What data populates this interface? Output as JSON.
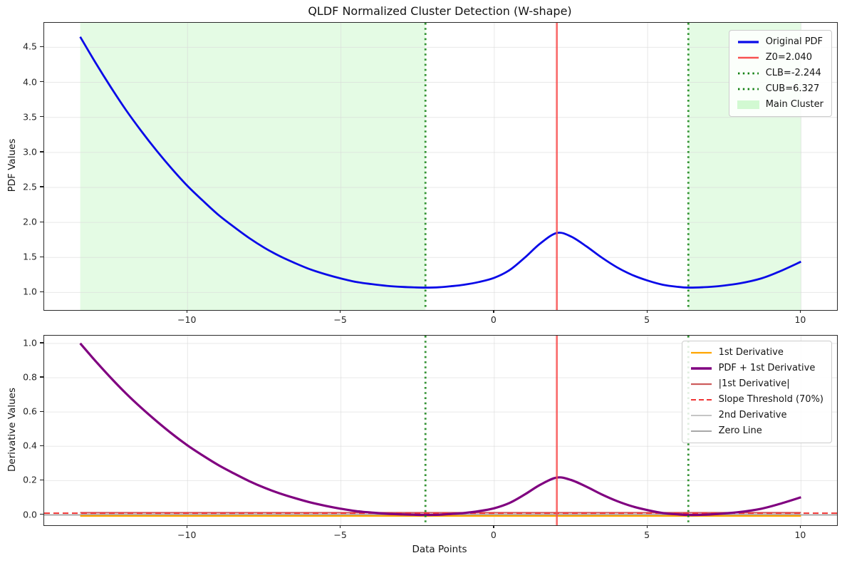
{
  "figure": {
    "title": "QLDF Normalized Cluster Detection (W-shape)"
  },
  "chart_data": [
    {
      "id": "ax1",
      "type": "line",
      "title": "QLDF Normalized Cluster Detection (W-shape)",
      "ylabel": "PDF Values",
      "xlabel": "",
      "xlim": [
        -14.675,
        11.175
      ],
      "ylim": [
        0.75,
        4.85
      ],
      "xticks": [
        -10,
        -5,
        0,
        5,
        10
      ],
      "yticks": [
        1.0,
        1.5,
        2.0,
        2.5,
        3.0,
        3.5,
        4.0,
        4.5
      ],
      "xtick_decimals": 0,
      "ytick_decimals": 1,
      "grid": true,
      "legend_position": "upper right",
      "spans": [
        {
          "name": "Main Cluster",
          "from": -13.5,
          "to": -2.244,
          "color": "#90ee90",
          "opacity": 0.24
        },
        {
          "name": "Main Cluster",
          "from": 6.327,
          "to": 10.0,
          "color": "#90ee90",
          "opacity": 0.24
        }
      ],
      "vlines": [
        {
          "name": "Z0",
          "x": 2.04,
          "color": "#f85050",
          "width": 2.6,
          "dash": null
        },
        {
          "name": "CLB",
          "x": -2.244,
          "color": "#128012",
          "width": 2.8,
          "dash": "2.6 4.6"
        },
        {
          "name": "CUB",
          "x": 6.327,
          "color": "#128012",
          "width": 2.8,
          "dash": "2.6 4.6"
        }
      ],
      "series": [
        {
          "name": "Original PDF",
          "color": "#0a0ae8",
          "width": 2.8,
          "x": [
            -13.5,
            -13,
            -12.5,
            -12,
            -11.5,
            -11,
            -10.5,
            -10,
            -9.5,
            -9,
            -8.5,
            -8,
            -7.5,
            -7,
            -6.5,
            -6,
            -5.5,
            -5,
            -4.5,
            -4,
            -3.5,
            -3,
            -2.6,
            -2.244,
            -1.8,
            -1.4,
            -1,
            -0.5,
            0,
            0.5,
            1,
            1.5,
            2.04,
            2.5,
            3,
            3.5,
            4,
            4.5,
            5,
            5.5,
            6,
            6.327,
            6.8,
            7.3,
            8,
            8.7,
            9.3,
            10
          ],
          "y": [
            4.65,
            4.28,
            3.93,
            3.6,
            3.3,
            3.02,
            2.76,
            2.52,
            2.31,
            2.11,
            1.94,
            1.78,
            1.64,
            1.52,
            1.42,
            1.33,
            1.26,
            1.2,
            1.15,
            1.12,
            1.095,
            1.08,
            1.073,
            1.07,
            1.075,
            1.09,
            1.11,
            1.15,
            1.21,
            1.32,
            1.5,
            1.7,
            1.85,
            1.8,
            1.66,
            1.5,
            1.36,
            1.25,
            1.17,
            1.11,
            1.08,
            1.07,
            1.075,
            1.09,
            1.13,
            1.2,
            1.3,
            1.44
          ]
        }
      ],
      "legend": [
        {
          "label": "Original PDF",
          "swatch": "line",
          "color": "#0a0ae8",
          "width": 3.2,
          "dash": null
        },
        {
          "label": "Z0=2.040",
          "swatch": "line",
          "color": "#f85050",
          "width": 2.6,
          "dash": null
        },
        {
          "label": "CLB=-2.244",
          "swatch": "line",
          "color": "#128012",
          "width": 2.8,
          "dash": "2.4 4.4"
        },
        {
          "label": "CUB=6.327",
          "swatch": "line",
          "color": "#128012",
          "width": 2.8,
          "dash": "2.4 4.4"
        },
        {
          "label": "Main Cluster",
          "swatch": "patch",
          "color": "rgba(144,238,144,0.38)",
          "dash": null
        }
      ],
      "key_values": {
        "Z0": 2.04,
        "CLB": -2.244,
        "CUB": 6.327,
        "pdf_max": 4.65,
        "pdf_min": 1.07,
        "local_peak": 1.85
      }
    },
    {
      "id": "ax2",
      "type": "line",
      "ylabel": "Derivative Values",
      "xlabel": "Data Points",
      "xlim": [
        -14.675,
        11.175
      ],
      "ylim": [
        -0.06,
        1.045
      ],
      "xticks": [
        -10,
        -5,
        0,
        5,
        10
      ],
      "yticks": [
        0.0,
        0.2,
        0.4,
        0.6,
        0.8,
        1.0
      ],
      "xtick_decimals": 0,
      "ytick_decimals": 1,
      "grid": true,
      "legend_position": "upper right",
      "spans": [],
      "vlines": [
        {
          "name": "Z0",
          "x": 2.04,
          "color": "#f85050",
          "width": 2.6,
          "dash": null
        },
        {
          "name": "CLB",
          "x": -2.244,
          "color": "#128012",
          "width": 2.8,
          "dash": "2.6 4.6"
        },
        {
          "name": "CUB",
          "x": 6.327,
          "color": "#128012",
          "width": 2.8,
          "dash": "2.6 4.6"
        }
      ],
      "series": [
        {
          "name": "2nd Derivative",
          "color": "#bdbdbd",
          "width": 1.6,
          "x": [
            -13.5,
            10
          ],
          "y": [
            0.002,
            0.002
          ]
        },
        {
          "name": "Zero Line",
          "color": "#9c9c9c",
          "width": 1.7,
          "x": [
            -14.675,
            11.175
          ],
          "y": [
            0.0,
            0.0
          ]
        },
        {
          "name": "1st Derivative",
          "color": "#ffa500",
          "width": 2.2,
          "x": [
            -13.5,
            10
          ],
          "y": [
            -0.006,
            -0.006
          ]
        },
        {
          "name": "|1st Derivative|",
          "color": "#cd5c5c",
          "width": 2.2,
          "x": [
            -13.5,
            10
          ],
          "y": [
            0.013,
            0.013
          ]
        },
        {
          "name": "Slope Threshold (70%)",
          "color": "#f03535",
          "width": 2.0,
          "dash": "8 5",
          "x": [
            -14.675,
            11.175
          ],
          "y": [
            0.01,
            0.01
          ]
        },
        {
          "name": "PDF + 1st Derivative",
          "color": "#800080",
          "width": 3.2,
          "x": [
            -13.5,
            -13,
            -12.5,
            -12,
            -11.5,
            -11,
            -10.5,
            -10,
            -9.5,
            -9,
            -8.5,
            -8,
            -7.5,
            -7,
            -6.5,
            -6,
            -5.5,
            -5,
            -4.5,
            -4,
            -3.5,
            -3,
            -2.6,
            -2.244,
            -1.8,
            -1.4,
            -1,
            -0.5,
            0,
            0.5,
            1,
            1.5,
            2.04,
            2.5,
            3,
            3.5,
            4,
            4.5,
            5,
            5.5,
            6,
            6.327,
            6.8,
            7.3,
            8,
            8.7,
            9.3,
            10
          ],
          "y": [
            1.0,
            0.897,
            0.799,
            0.707,
            0.623,
            0.545,
            0.472,
            0.405,
            0.346,
            0.291,
            0.243,
            0.198,
            0.159,
            0.126,
            0.098,
            0.073,
            0.053,
            0.036,
            0.022,
            0.014,
            0.007,
            0.003,
            0.001,
            0.0,
            0.001,
            0.006,
            0.011,
            0.022,
            0.039,
            0.07,
            0.12,
            0.176,
            0.218,
            0.204,
            0.165,
            0.12,
            0.081,
            0.05,
            0.028,
            0.011,
            0.003,
            0.0,
            0.001,
            0.006,
            0.017,
            0.036,
            0.064,
            0.103
          ]
        }
      ],
      "legend": [
        {
          "label": "1st Derivative",
          "swatch": "line",
          "color": "#ffa500",
          "width": 2.2,
          "dash": null
        },
        {
          "label": "PDF + 1st Derivative",
          "swatch": "line",
          "color": "#800080",
          "width": 3.4,
          "dash": null
        },
        {
          "label": "|1st Derivative|",
          "swatch": "line",
          "color": "#cd5c5c",
          "width": 2.2,
          "dash": null
        },
        {
          "label": "Slope Threshold (70%)",
          "swatch": "line",
          "color": "#f03535",
          "width": 2.0,
          "dash": "7 4"
        },
        {
          "label": "2nd Derivative",
          "swatch": "line",
          "color": "#bdbdbd",
          "width": 1.8,
          "dash": null
        },
        {
          "label": "Zero Line",
          "swatch": "line",
          "color": "#9c9c9c",
          "width": 1.8,
          "dash": null
        }
      ],
      "key_values": {
        "slope_threshold": 0.01,
        "zero_line": 0.0,
        "peak": 0.218
      }
    }
  ]
}
